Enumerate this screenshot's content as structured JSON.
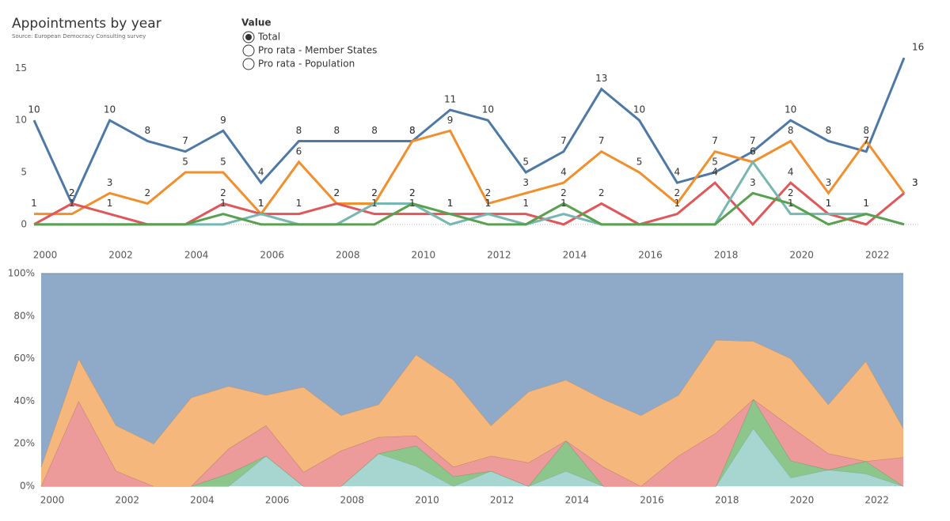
{
  "header": {
    "title": "Appointments by year",
    "subtitle": "Source: European Democracy Consulting survey"
  },
  "controls": {
    "title": "Value",
    "options": [
      "Total",
      "Pro rata - Member States",
      "Pro rata - Population"
    ]
  },
  "chart_data": [
    {
      "type": "line",
      "grid": false,
      "data_labels": true,
      "x": [
        2000,
        2001,
        2002,
        2003,
        2004,
        2005,
        2006,
        2007,
        2008,
        2009,
        2010,
        2011,
        2012,
        2013,
        2014,
        2015,
        2016,
        2017,
        2018,
        2019,
        2020,
        2021,
        2022,
        2023
      ],
      "xlim": [
        2000,
        2023
      ],
      "xticks": [
        2000,
        2002,
        2004,
        2006,
        2008,
        2010,
        2012,
        2014,
        2016,
        2018,
        2020,
        2022
      ],
      "ylim": [
        -1,
        17
      ],
      "yticks": [
        0,
        5,
        10,
        15
      ],
      "series": [
        {
          "color": "#4e79a7",
          "values": [
            10,
            2,
            10,
            8,
            7,
            9,
            4,
            8,
            8,
            8,
            8,
            11,
            10,
            5,
            7,
            13,
            10,
            4,
            5,
            7,
            10,
            8,
            7,
            16
          ]
        },
        {
          "color": "#f28e2b",
          "values": [
            1,
            1,
            3,
            2,
            5,
            5,
            1,
            6,
            2,
            2,
            8,
            9,
            2,
            3,
            4,
            7,
            5,
            2,
            7,
            6,
            8,
            3,
            8,
            3
          ]
        },
        {
          "color": "#e15759",
          "values": [
            0,
            2,
            1,
            0,
            0,
            2,
            1,
            1,
            2,
            1,
            1,
            1,
            1,
            1,
            0,
            2,
            0,
            1,
            4,
            0,
            4,
            1,
            0,
            3
          ]
        },
        {
          "color": "#76b7b2",
          "values": [
            0,
            0,
            0,
            0,
            0,
            0,
            1,
            0,
            0,
            2,
            2,
            0,
            1,
            0,
            1,
            0,
            0,
            0,
            0,
            6,
            1,
            1,
            1,
            0
          ]
        },
        {
          "color": "#59a14f",
          "values": [
            0,
            0,
            0,
            0,
            0,
            1,
            0,
            0,
            0,
            0,
            2,
            1,
            0,
            0,
            2,
            0,
            0,
            0,
            0,
            3,
            2,
            0,
            1,
            0
          ]
        }
      ]
    },
    {
      "type": "area",
      "stacking": "percent",
      "x": [
        2000,
        2001,
        2002,
        2003,
        2004,
        2005,
        2006,
        2007,
        2008,
        2009,
        2010,
        2011,
        2012,
        2013,
        2014,
        2015,
        2016,
        2017,
        2018,
        2019,
        2020,
        2021,
        2022,
        2023
      ],
      "xlim": [
        2000,
        2023
      ],
      "xticks": [
        2000,
        2002,
        2004,
        2006,
        2008,
        2010,
        2012,
        2014,
        2016,
        2018,
        2020,
        2022
      ],
      "ylim": [
        0,
        100
      ],
      "yticks": [
        {
          "value": 0,
          "label": "0%"
        },
        {
          "value": 20,
          "label": "20%"
        },
        {
          "value": 40,
          "label": "40%"
        },
        {
          "value": 60,
          "label": "60%"
        },
        {
          "value": 80,
          "label": "80%"
        },
        {
          "value": 100,
          "label": "100%"
        }
      ],
      "series": [
        {
          "color": "#a7d5d0",
          "values": [
            0,
            0,
            0,
            0,
            0,
            0,
            1,
            0,
            0,
            2,
            2,
            0,
            1,
            0,
            1,
            0,
            0,
            0,
            0,
            6,
            1,
            1,
            1,
            0
          ]
        },
        {
          "color": "#8cc68a",
          "values": [
            0,
            0,
            0,
            0,
            0,
            1,
            0,
            0,
            0,
            0,
            2,
            1,
            0,
            0,
            2,
            0,
            0,
            0,
            0,
            3,
            2,
            0,
            1,
            0
          ]
        },
        {
          "color": "#ec9a9a",
          "values": [
            0,
            2,
            1,
            0,
            0,
            2,
            1,
            1,
            2,
            1,
            1,
            1,
            1,
            1,
            0,
            2,
            0,
            1,
            4,
            0,
            4,
            1,
            0,
            3
          ]
        },
        {
          "color": "#f5b77b",
          "values": [
            1,
            1,
            3,
            2,
            5,
            5,
            1,
            6,
            2,
            2,
            8,
            9,
            2,
            3,
            4,
            7,
            5,
            2,
            7,
            6,
            8,
            3,
            8,
            3
          ]
        },
        {
          "color": "#8faac8",
          "values": [
            10,
            2,
            10,
            8,
            7,
            9,
            4,
            8,
            8,
            8,
            8,
            11,
            10,
            5,
            7,
            13,
            10,
            4,
            5,
            7,
            10,
            8,
            7,
            16
          ]
        }
      ]
    }
  ]
}
